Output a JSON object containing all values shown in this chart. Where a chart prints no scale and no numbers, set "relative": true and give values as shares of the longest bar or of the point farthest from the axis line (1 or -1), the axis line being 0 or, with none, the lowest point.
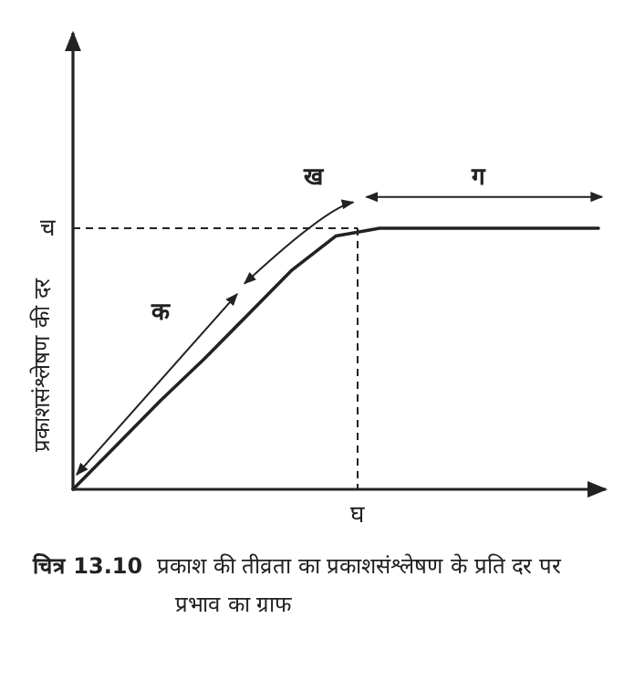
{
  "chart_data": {
    "type": "line",
    "relative": true,
    "ylabel": "प्रकाशसंश्लेषण की दर",
    "categories": [
      null,
      null,
      null,
      null,
      null,
      null,
      null,
      null,
      null,
      null,
      null,
      null,
      null
    ],
    "series": [
      {
        "color": "#222222",
        "values": [
          0,
          0.17,
          0.34,
          0.5,
          0.67,
          0.84,
          0.97,
          1,
          1,
          1,
          1,
          1,
          1
        ]
      }
    ],
    "ref_lines": [
      {
        "axis": "y",
        "value": 1,
        "label": "च",
        "line_style": "dashed"
      }
    ],
    "annotations": [
      "क",
      "ख",
      "ग",
      "घ",
      "**चित्र 13.10** प्रकाश की तीव्रता का प्रकाशसंश्लेषण के प्रति दर पर प्रभाव का ग्राफ"
    ],
    "marker": "none",
    "line_style": "solid",
    "grid": false
  }
}
